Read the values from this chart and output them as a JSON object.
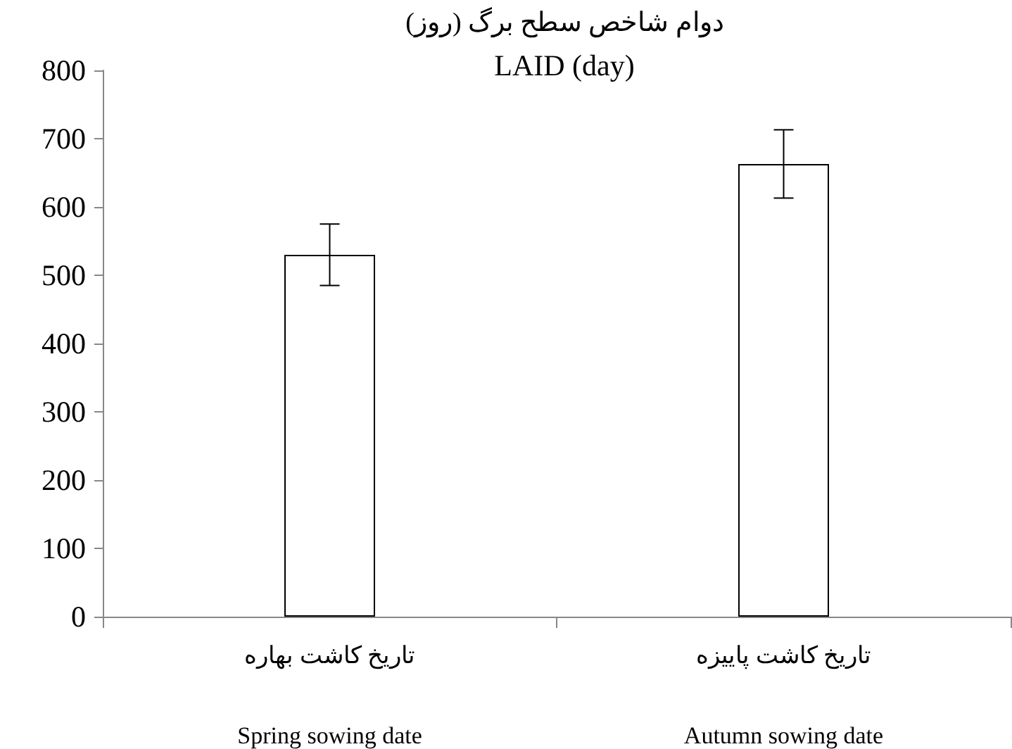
{
  "chart_data": {
    "type": "bar",
    "title": "دوام شاخص سطح برگ (روز)",
    "subtitle": "LAID (day)",
    "categories": [
      "تاریخ کاشت بهاره\n\n\nSpring sowing date",
      "تاریخ کاشت پاییزه\n\n\nAutumn sowing date"
    ],
    "values": [
      530,
      663
    ],
    "errors": [
      45,
      50
    ],
    "color": "#ffffff",
    "ylim": [
      0,
      800
    ],
    "yticks": [
      0,
      100,
      200,
      300,
      400,
      500,
      600,
      700,
      800
    ]
  }
}
